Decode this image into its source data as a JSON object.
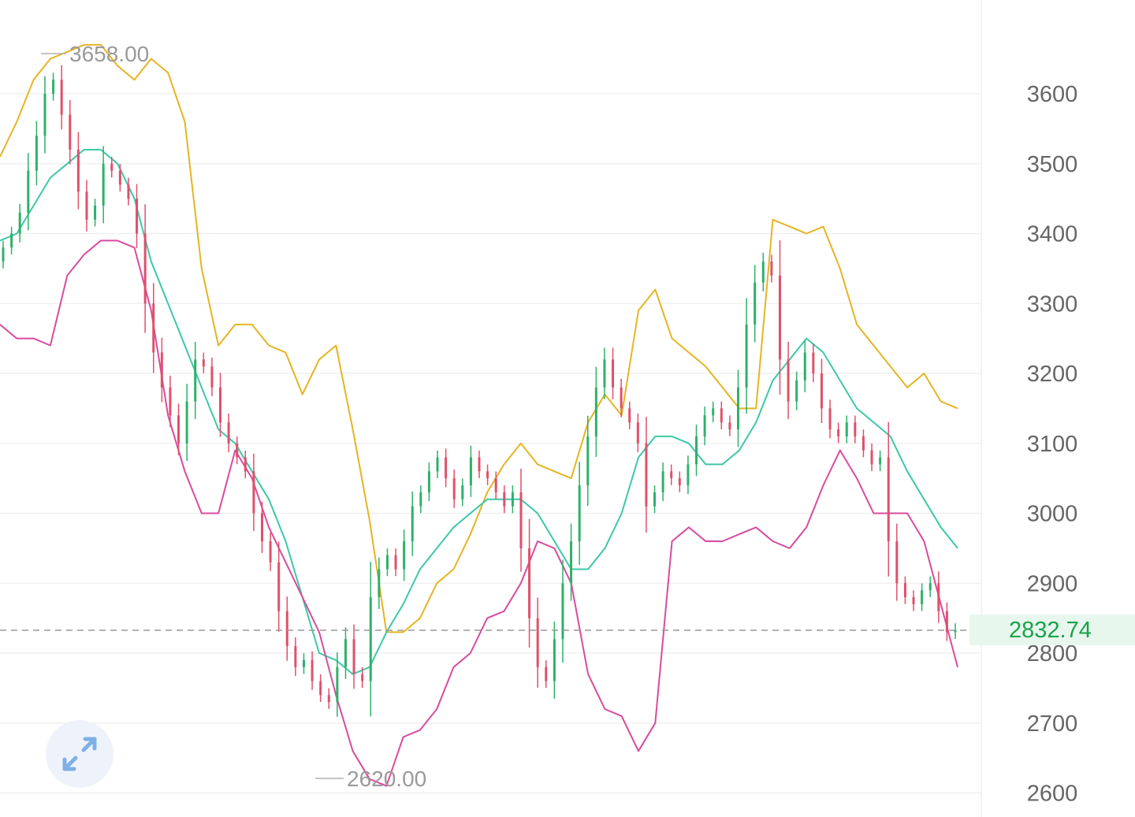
{
  "chart_data": {
    "type": "candlestick",
    "title": "",
    "xlabel": "",
    "ylabel": "",
    "ylim": [
      2570,
      3700
    ],
    "y_ticks": [
      "3600",
      "3500",
      "3400",
      "3300",
      "3200",
      "3100",
      "3000",
      "2900",
      "2800",
      "2700",
      "2600"
    ],
    "grid": true,
    "current_price": {
      "label": "2832.74",
      "value": 2832.74
    },
    "extremes": {
      "high": {
        "label": "3658.00",
        "value": 3658
      },
      "low": {
        "label": "2620.00",
        "value": 2620
      }
    },
    "colors": {
      "up": "#2fb06a",
      "down": "#e0506b",
      "upper_band": "#e6b422",
      "middle_band": "#3cc8a8",
      "lower_band": "#d94aa0",
      "grid": "#f0f0f0",
      "tick": "#666666",
      "current_price": "#17a34a",
      "current_price_bg": "#e8f7ee"
    },
    "close": [
      3380,
      3400,
      3430,
      3490,
      3540,
      3600,
      3620,
      3570,
      3520,
      3460,
      3420,
      3440,
      3500,
      3490,
      3470,
      3450,
      3400,
      3300,
      3230,
      3180,
      3140,
      3100,
      3160,
      3220,
      3210,
      3180,
      3130,
      3100,
      3080,
      3060,
      3000,
      2960,
      2930,
      2860,
      2810,
      2780,
      2790,
      2760,
      2740,
      2730,
      2780,
      2820,
      2770,
      2760,
      2880,
      2920,
      2940,
      2920,
      2960,
      3010,
      3030,
      3060,
      3080,
      3050,
      3020,
      3040,
      3080,
      3060,
      3050,
      3030,
      3010,
      3030,
      2950,
      2850,
      2780,
      2760,
      2820,
      2900,
      2960,
      3040,
      3110,
      3180,
      3220,
      3180,
      3150,
      3130,
      3100,
      3010,
      3030,
      3060,
      3050,
      3040,
      3070,
      3110,
      3140,
      3150,
      3130,
      3120,
      3180,
      3270,
      3330,
      3360,
      3340,
      3220,
      3160,
      3190,
      3230,
      3200,
      3150,
      3120,
      3110,
      3130,
      3110,
      3090,
      3070,
      3080,
      2960,
      2900,
      2880,
      2870,
      2890,
      2900,
      2860,
      2830,
      2833
    ],
    "upper_band": [
      3510,
      3560,
      3620,
      3650,
      3660,
      3670,
      3670,
      3640,
      3620,
      3650,
      3630,
      3560,
      3350,
      3240,
      3270,
      3270,
      3240,
      3230,
      3170,
      3220,
      3240,
      3120,
      2990,
      2830,
      2830,
      2850,
      2900,
      2920,
      2970,
      3030,
      3070,
      3100,
      3070,
      3060,
      3050,
      3130,
      3170,
      3140,
      3290,
      3320,
      3250,
      3230,
      3210,
      3180,
      3150,
      3150,
      3420,
      3410,
      3400,
      3410,
      3350,
      3270,
      3240,
      3210,
      3180,
      3200,
      3160,
      3150
    ],
    "middle_band": [
      3390,
      3400,
      3440,
      3480,
      3500,
      3520,
      3520,
      3500,
      3450,
      3360,
      3300,
      3240,
      3180,
      3120,
      3100,
      3060,
      3020,
      2960,
      2880,
      2800,
      2790,
      2770,
      2780,
      2830,
      2870,
      2920,
      2950,
      2980,
      3000,
      3020,
      3020,
      3020,
      3000,
      2960,
      2920,
      2920,
      2950,
      3000,
      3080,
      3110,
      3110,
      3100,
      3070,
      3070,
      3090,
      3130,
      3190,
      3220,
      3250,
      3230,
      3190,
      3150,
      3130,
      3110,
      3060,
      3020,
      2980,
      2950
    ],
    "lower_band": [
      3270,
      3250,
      3250,
      3240,
      3340,
      3370,
      3390,
      3390,
      3380,
      3290,
      3140,
      3060,
      3000,
      3000,
      3090,
      3050,
      2980,
      2930,
      2880,
      2830,
      2740,
      2660,
      2620,
      2610,
      2680,
      2690,
      2720,
      2780,
      2800,
      2850,
      2860,
      2900,
      2960,
      2950,
      2900,
      2770,
      2720,
      2710,
      2660,
      2700,
      2960,
      2980,
      2960,
      2960,
      2970,
      2980,
      2960,
      2950,
      2980,
      3040,
      3090,
      3050,
      3000,
      3000,
      3000,
      2960,
      2870,
      2780
    ]
  },
  "ui": {
    "expand_icon": "expand-diagonal-arrows-icon",
    "expand_icon_color": "#7fb0e6"
  }
}
